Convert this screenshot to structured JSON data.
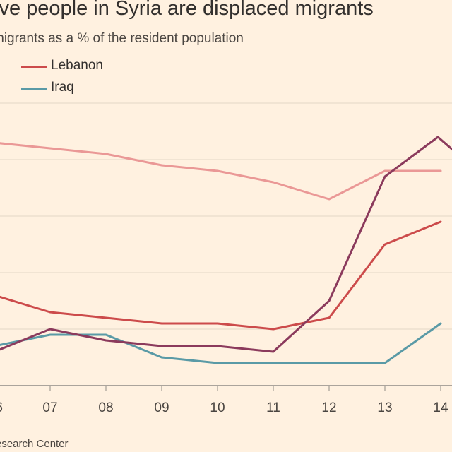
{
  "title": "ive people in Syria are displaced migrants",
  "subtitle": "migrants as a % of the resident population",
  "legend": [
    {
      "label": "Lebanon",
      "color": "#cc4b4b"
    },
    {
      "label": "Iraq",
      "color": "#5a9aa6"
    }
  ],
  "source": "esearch Center",
  "chart_data": {
    "type": "line",
    "x_tick_labels": [
      "6",
      "07",
      "08",
      "09",
      "10",
      "11",
      "12",
      "13",
      "14"
    ],
    "x": [
      6,
      7,
      8,
      9,
      10,
      11,
      12,
      13,
      14
    ],
    "ylim": [
      0,
      5
    ],
    "gridlines": [
      0,
      1,
      2,
      3,
      4,
      5
    ],
    "series": [
      {
        "name": "Syria (unlabeled)",
        "color": "#ea9896",
        "x": [
          6,
          7,
          8,
          9,
          10,
          11,
          12,
          13,
          14
        ],
        "values": [
          4.3,
          4.2,
          4.1,
          3.9,
          3.8,
          3.6,
          3.3,
          3.8,
          3.8
        ]
      },
      {
        "name": "Lebanon",
        "color": "#cc4b4b",
        "x": [
          6,
          7,
          8,
          9,
          10,
          11,
          12,
          13,
          14
        ],
        "values": [
          1.6,
          1.3,
          1.2,
          1.1,
          1.1,
          1.0,
          1.2,
          2.5,
          2.9
        ]
      },
      {
        "name": "Iraq",
        "color": "#5a9aa6",
        "x": [
          6,
          7,
          8,
          9,
          10,
          11,
          12,
          13,
          14
        ],
        "values": [
          0.7,
          0.9,
          0.9,
          0.5,
          0.4,
          0.4,
          0.4,
          0.4,
          1.1
        ]
      },
      {
        "name": "Other (unlabeled)",
        "color": "#8b3a5c",
        "x": [
          6,
          7,
          8,
          9,
          10,
          11,
          12,
          13,
          13.95,
          14.3
        ],
        "values": [
          0.6,
          1.0,
          0.8,
          0.7,
          0.7,
          0.6,
          1.5,
          3.7,
          4.4,
          4.1
        ]
      }
    ]
  }
}
